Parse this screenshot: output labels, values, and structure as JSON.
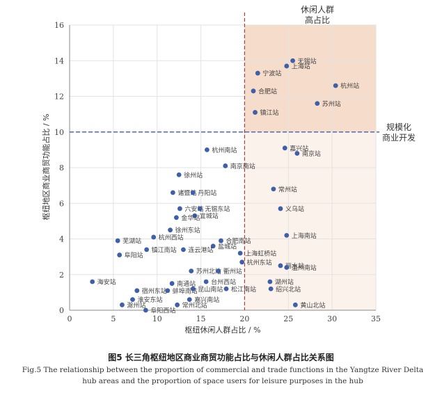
{
  "chart_data": {
    "type": "scatter",
    "xlabel": "枢纽休闲人群占比 / %",
    "ylabel": "枢纽地区商业商贸功能占比 / %",
    "xlim": [
      0,
      35
    ],
    "ylim": [
      0,
      16
    ],
    "xticks": [
      0,
      5,
      10,
      15,
      20,
      25,
      30,
      35
    ],
    "yticks": [
      0,
      2,
      4,
      6,
      8,
      10,
      12,
      14,
      16
    ],
    "grid": true,
    "threshold_x": 20,
    "threshold_y": 10,
    "quadrant_labels": {
      "top_right": [
        "休闲人群",
        "高占比"
      ],
      "right": [
        "规模化",
        "商业开发"
      ]
    },
    "colors": {
      "points": "#3f5fa8",
      "vline": "#b03a3a",
      "hline": "#4a6ab8",
      "high_region": "#f6dcca",
      "low_region": "#fcf2ec"
    },
    "points": [
      {
        "name": "无锡站",
        "x": 25.5,
        "y": 14.0
      },
      {
        "name": "上海站",
        "x": 24.8,
        "y": 13.7
      },
      {
        "name": "宁波站",
        "x": 21.5,
        "y": 13.3
      },
      {
        "name": "杭州站",
        "x": 30.4,
        "y": 12.6
      },
      {
        "name": "合肥站",
        "x": 21.0,
        "y": 12.3
      },
      {
        "name": "苏州站",
        "x": 28.3,
        "y": 11.6
      },
      {
        "name": "镇江站",
        "x": 21.2,
        "y": 11.1
      },
      {
        "name": "嘉兴站",
        "x": 24.6,
        "y": 9.1
      },
      {
        "name": "杭州南站",
        "x": 15.7,
        "y": 9.0
      },
      {
        "name": "南京站",
        "x": 26.0,
        "y": 8.8
      },
      {
        "name": "南京南站",
        "x": 17.8,
        "y": 8.1
      },
      {
        "name": "徐州站",
        "x": 12.5,
        "y": 7.6
      },
      {
        "name": "常州站",
        "x": 23.3,
        "y": 6.8
      },
      {
        "name": "诸暨站",
        "x": 11.8,
        "y": 6.6
      },
      {
        "name": "丹阳站",
        "x": 14.1,
        "y": 6.6
      },
      {
        "name": "六安站",
        "x": 12.6,
        "y": 5.7
      },
      {
        "name": "无锡东站",
        "x": 14.9,
        "y": 5.7
      },
      {
        "name": "义乌站",
        "x": 24.1,
        "y": 5.7
      },
      {
        "name": "宜城站",
        "x": 14.3,
        "y": 5.3
      },
      {
        "name": "金华站",
        "x": 12.2,
        "y": 5.2
      },
      {
        "name": "徐州东站",
        "x": 11.5,
        "y": 4.5
      },
      {
        "name": "上海南站",
        "x": 24.8,
        "y": 4.2
      },
      {
        "name": "杭州西站",
        "x": 9.6,
        "y": 4.1
      },
      {
        "name": "芜湖站",
        "x": 5.5,
        "y": 3.9
      },
      {
        "name": "合肥南站",
        "x": 17.3,
        "y": 3.9
      },
      {
        "name": "盐城站",
        "x": 16.4,
        "y": 3.6
      },
      {
        "name": "镇江南站",
        "x": 8.8,
        "y": 3.4
      },
      {
        "name": "连云港站",
        "x": 13.0,
        "y": 3.4
      },
      {
        "name": "上海虹桥站",
        "x": 19.5,
        "y": 3.2
      },
      {
        "name": "阜阳站",
        "x": 5.7,
        "y": 3.1
      },
      {
        "name": "杭州东站",
        "x": 19.7,
        "y": 2.7
      },
      {
        "name": "丽水站",
        "x": 24.1,
        "y": 2.5
      },
      {
        "name": "温州南站",
        "x": 24.8,
        "y": 2.4
      },
      {
        "name": "苏州北站",
        "x": 13.9,
        "y": 2.2
      },
      {
        "name": "衢州站",
        "x": 17.0,
        "y": 2.2
      },
      {
        "name": "海安站",
        "x": 2.6,
        "y": 1.6
      },
      {
        "name": "台州西站",
        "x": 15.6,
        "y": 1.6
      },
      {
        "name": "湖州站",
        "x": 22.9,
        "y": 1.6
      },
      {
        "name": "南通站",
        "x": 11.7,
        "y": 1.5
      },
      {
        "name": "宿州东站",
        "x": 7.7,
        "y": 1.1
      },
      {
        "name": "蚌埠南站",
        "x": 11.2,
        "y": 1.1
      },
      {
        "name": "昆山南站",
        "x": 14.1,
        "y": 1.2
      },
      {
        "name": "松江南站",
        "x": 17.9,
        "y": 1.2
      },
      {
        "name": "绍兴北站",
        "x": 23.0,
        "y": 1.2
      },
      {
        "name": "嘉兴南站",
        "x": 13.7,
        "y": 0.6
      },
      {
        "name": "淮安东站",
        "x": 7.2,
        "y": 0.6
      },
      {
        "name": "滁州站",
        "x": 6.0,
        "y": 0.3
      },
      {
        "name": "常州北站",
        "x": 12.3,
        "y": 0.3
      },
      {
        "name": "黄山北站",
        "x": 25.8,
        "y": 0.3
      },
      {
        "name": "阜阳西站",
        "x": 8.7,
        "y": 0.0
      }
    ]
  },
  "caption": {
    "cn": "图5  长三角枢纽地区商业商贸功能占比与休闲人群占比关系图",
    "en": "Fig.5   The relationship between the proportion of commercial and trade functions in the Yangtze River Delta hub areas and the proportion of space users for leisure purposes in the hub"
  }
}
